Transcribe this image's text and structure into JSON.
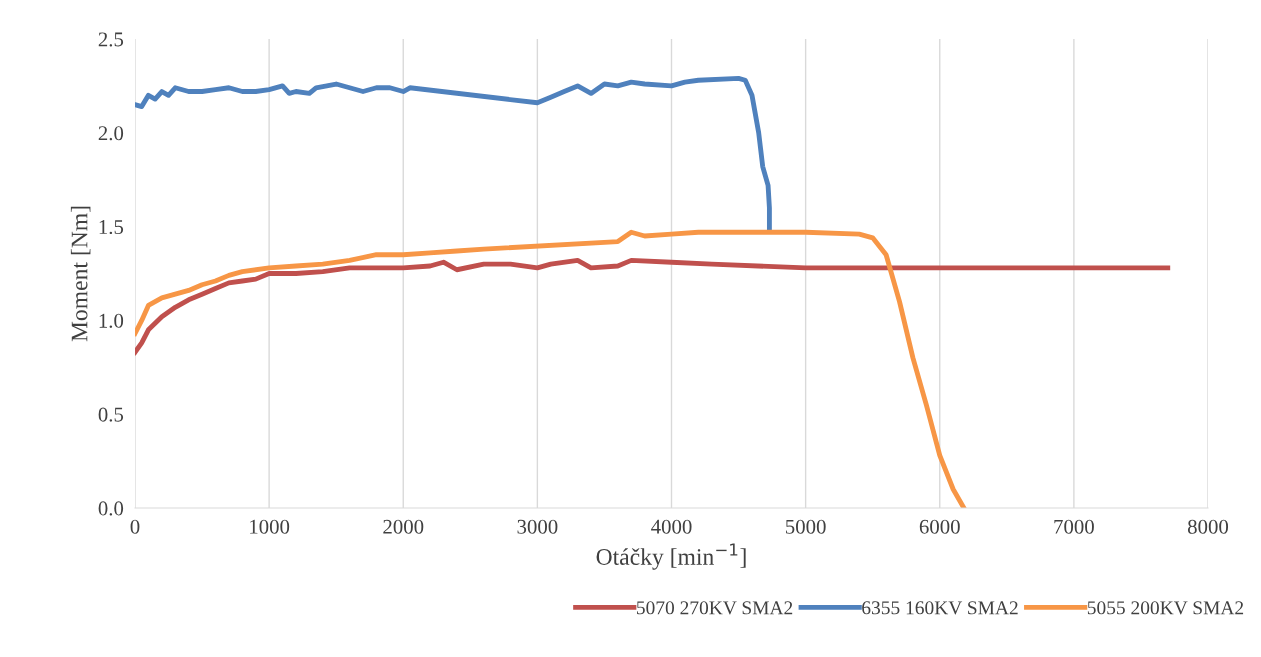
{
  "chart_data": {
    "type": "line",
    "xlabel": "Otáčky [min$^{−1}$]",
    "ylabel": "Moment [Nm]",
    "xlim": [
      0,
      8000
    ],
    "xticks": [
      0,
      1000,
      2000,
      3000,
      4000,
      5000,
      6000,
      7000,
      8000
    ],
    "ylim": [
      0,
      2.5
    ],
    "yticks": [
      {
        "value": 0,
        "label": "0.0"
      },
      {
        "value": 0.5,
        "label": "0.5"
      },
      {
        "value": 1,
        "label": "1.0"
      },
      {
        "value": 1.5,
        "label": "1.5"
      },
      {
        "value": 2,
        "label": "2.0"
      },
      {
        "value": 2.5,
        "label": "2.5"
      }
    ],
    "grid": "x",
    "legend": "bottom right",
    "marker": "none",
    "line_style": "solid",
    "series": [
      {
        "name": "5070 270KV SMA2",
        "color": "#c0504d",
        "x": [
          0,
          50,
          100,
          200,
          300,
          400,
          500,
          600,
          700,
          800,
          900,
          1000,
          1200,
          1400,
          1600,
          1800,
          2000,
          2200,
          2300,
          2400,
          2600,
          2800,
          3000,
          3100,
          3300,
          3400,
          3600,
          3700,
          4000,
          4300,
          5000,
          5500,
          6000,
          6500,
          7000,
          7700
        ],
        "values": [
          0.83,
          0.88,
          0.95,
          1.02,
          1.07,
          1.11,
          1.14,
          1.17,
          1.2,
          1.21,
          1.22,
          1.25,
          1.25,
          1.26,
          1.28,
          1.28,
          1.28,
          1.29,
          1.31,
          1.27,
          1.3,
          1.3,
          1.28,
          1.3,
          1.32,
          1.28,
          1.29,
          1.32,
          1.31,
          1.3,
          1.28,
          1.28,
          1.28,
          1.28,
          1.28,
          1.28
        ]
      },
      {
        "name": "6355 160KV SMA2",
        "color": "#4f81bd",
        "x": [
          0,
          50,
          100,
          150,
          200,
          250,
          300,
          400,
          500,
          600,
          700,
          800,
          900,
          1000,
          1100,
          1150,
          1200,
          1300,
          1350,
          1500,
          1600,
          1700,
          1800,
          1900,
          2000,
          2050,
          3000,
          3100,
          3200,
          3300,
          3400,
          3500,
          3600,
          3700,
          3800,
          4000,
          4100,
          4200,
          4500,
          4550,
          4600,
          4650,
          4680,
          4720,
          4730,
          4730
        ],
        "values": [
          2.15,
          2.14,
          2.2,
          2.18,
          2.22,
          2.2,
          2.24,
          2.22,
          2.22,
          2.23,
          2.24,
          2.22,
          2.22,
          2.23,
          2.25,
          2.21,
          2.22,
          2.21,
          2.24,
          2.26,
          2.24,
          2.22,
          2.24,
          2.24,
          2.22,
          2.24,
          2.16,
          2.19,
          2.22,
          2.25,
          2.21,
          2.26,
          2.25,
          2.27,
          2.26,
          2.25,
          2.27,
          2.28,
          2.29,
          2.28,
          2.2,
          2.0,
          1.82,
          1.72,
          1.6,
          1.48
        ]
      },
      {
        "name": "5055 200KV SMA2",
        "color": "#f79646",
        "x": [
          0,
          50,
          100,
          200,
          300,
          400,
          500,
          600,
          700,
          800,
          1000,
          1200,
          1400,
          1600,
          1800,
          2000,
          2200,
          2400,
          2600,
          3600,
          3700,
          3800,
          4000,
          4200,
          4500,
          5000,
          5400,
          5500,
          5600,
          5700,
          5800,
          5900,
          6000,
          6100,
          6180
        ],
        "values": [
          0.93,
          1.0,
          1.08,
          1.12,
          1.14,
          1.16,
          1.19,
          1.21,
          1.24,
          1.26,
          1.28,
          1.29,
          1.3,
          1.32,
          1.35,
          1.35,
          1.36,
          1.37,
          1.38,
          1.42,
          1.47,
          1.45,
          1.46,
          1.47,
          1.47,
          1.47,
          1.46,
          1.44,
          1.35,
          1.1,
          0.8,
          0.55,
          0.28,
          0.1,
          0
        ]
      }
    ]
  }
}
